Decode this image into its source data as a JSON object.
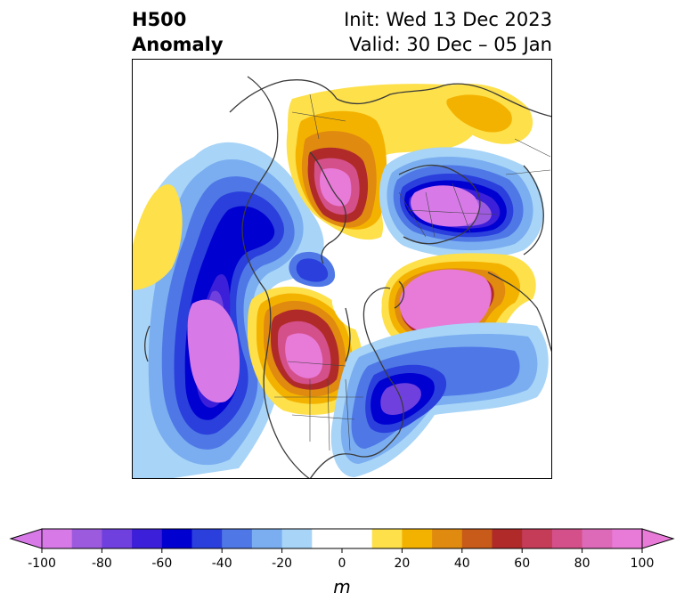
{
  "title": {
    "left_line1": "H500",
    "left_line2": "Anomaly",
    "right_line1": "Init: Wed 13 Dec 2023",
    "right_line2": "Valid: 30 Dec – 05 Jan"
  },
  "map": {
    "projection": "north-polar-stereographic",
    "variable": "500 hPa geopotential height anomaly",
    "coastline_color": "#3a3a3a",
    "anomaly_centers": [
      {
        "sign": "negative",
        "region": "north Pacific / Aleutians",
        "peak_m": -100
      },
      {
        "sign": "positive",
        "region": "western North America",
        "peak_m": 100
      },
      {
        "sign": "negative",
        "region": "western Atlantic off Newfoundland",
        "peak_m": -80
      },
      {
        "sign": "positive",
        "region": "Greenland / north Atlantic",
        "peak_m": 100
      },
      {
        "sign": "negative",
        "region": "northern Europe / Scandinavia",
        "peak_m": -100
      },
      {
        "sign": "positive",
        "region": "Siberia / Arctic",
        "peak_m": 100
      },
      {
        "sign": "negative",
        "region": "Bering Sea",
        "peak_m": -60
      }
    ]
  },
  "colorbar": {
    "min": -100,
    "max": 100,
    "step": 10,
    "extend": "both",
    "ticks": [
      "-100",
      "-80",
      "-60",
      "-40",
      "-20",
      "0",
      "20",
      "40",
      "60",
      "80",
      "100"
    ],
    "unit": "m",
    "colors": [
      "#d77ae8",
      "#9c5bde",
      "#7040de",
      "#3c1fd8",
      "#0000d0",
      "#2a3fdc",
      "#4f78e6",
      "#7aaef0",
      "#a8d4f7",
      "#ffffff",
      "#ffffff",
      "#fde04a",
      "#f4b200",
      "#e08a10",
      "#c85a1a",
      "#b02a2a",
      "#c43c58",
      "#d4508a",
      "#dc6ab8",
      "#e87ad8"
    ]
  }
}
